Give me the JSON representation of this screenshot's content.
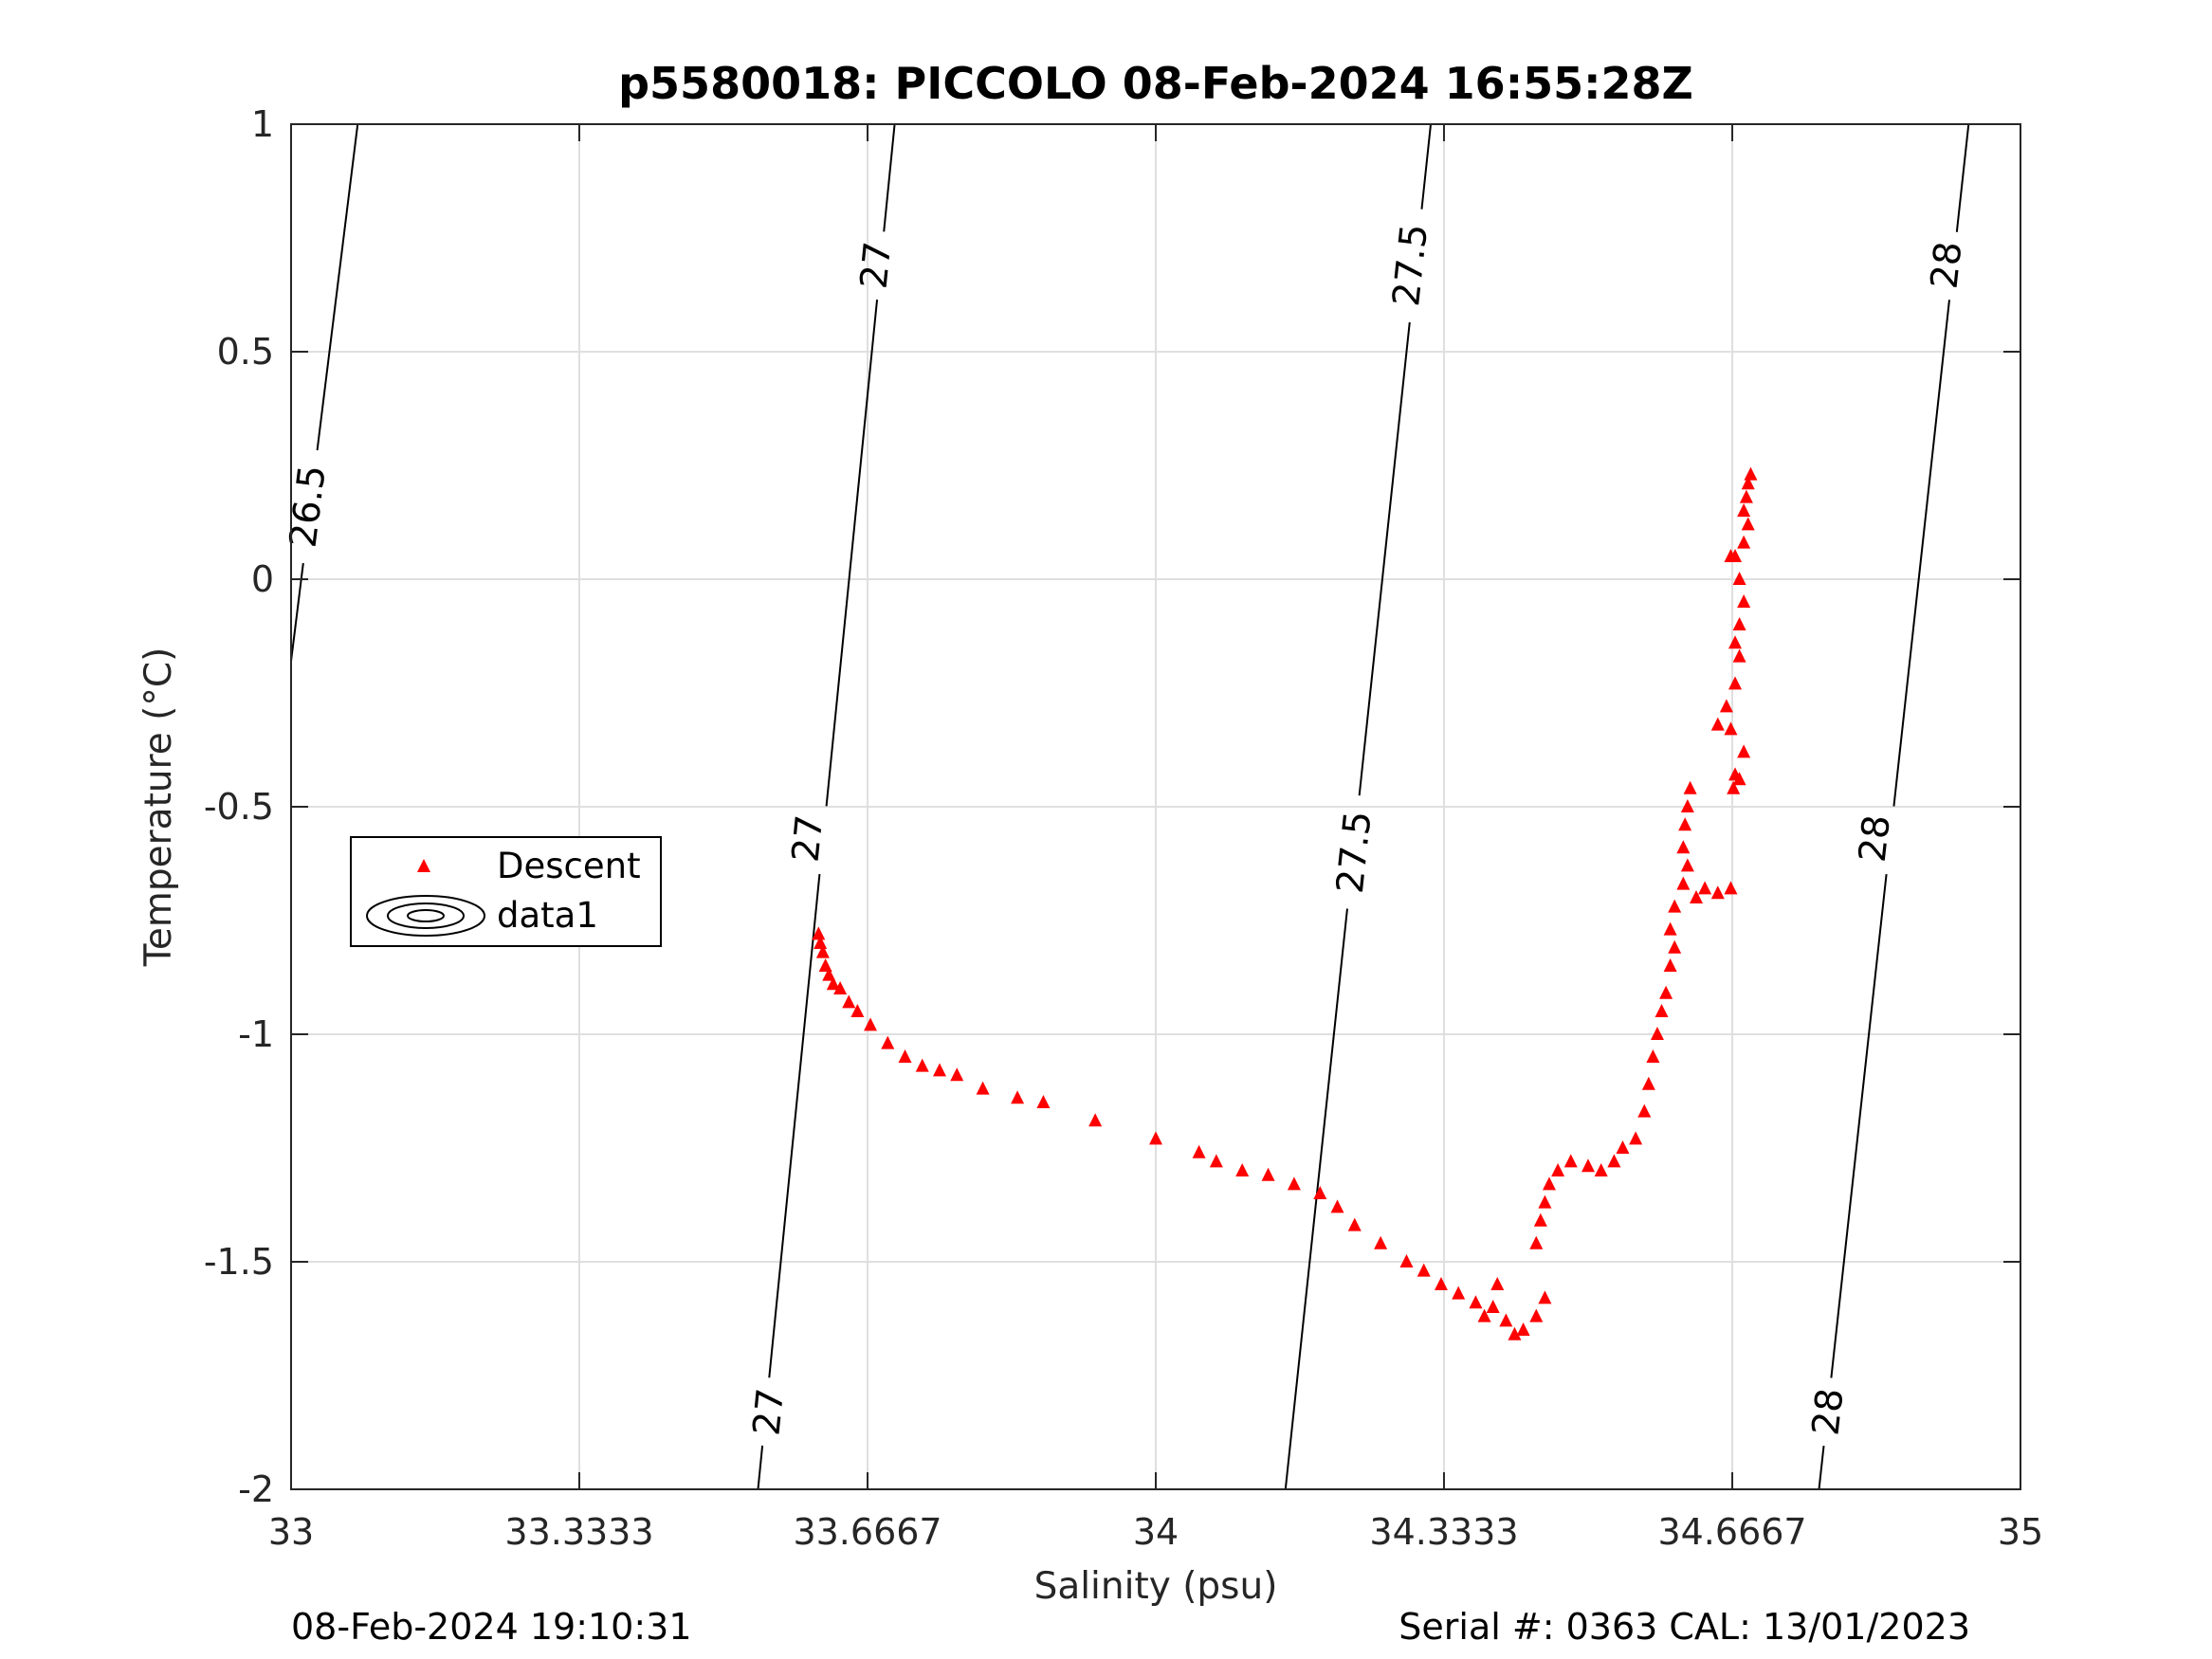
{
  "chart_data": {
    "type": "scatter",
    "title": "p5580018: PICCOLO 08-Feb-2024 16:55:28Z",
    "xlabel": "Salinity (psu)",
    "ylabel": "Temperature (°C)",
    "xlim": [
      33,
      35
    ],
    "ylim": [
      -2,
      1
    ],
    "xticks": [
      33,
      33.3333,
      33.6667,
      34,
      34.3333,
      34.6667,
      35
    ],
    "xtick_labels": [
      "33",
      "33.3333",
      "33.6667",
      "34",
      "34.3333",
      "34.6667",
      "35"
    ],
    "yticks": [
      -2,
      -1.5,
      -1,
      -0.5,
      0,
      0.5,
      1
    ],
    "ytick_labels": [
      "-2",
      "-1.5",
      "-1",
      "-0.5",
      "0",
      "0.5",
      "1"
    ],
    "grid": true,
    "legend": {
      "placement": "middle-left",
      "entries": [
        {
          "label": "Descent",
          "marker": "triangle",
          "color": "#ff0000"
        },
        {
          "label": "data1",
          "marker": "contour",
          "color": "#000000"
        }
      ]
    },
    "contours": [
      {
        "level": "26.5",
        "points": [
          [
            33.0,
            -0.18
          ],
          [
            33.077,
            1.0
          ]
        ],
        "labels": [
          {
            "x": 33.02,
            "y": 0.16,
            "text": "26.5"
          }
        ]
      },
      {
        "level": "27",
        "points": [
          [
            33.54,
            -2.0
          ],
          [
            33.698,
            1.0
          ]
        ],
        "labels": [
          {
            "x": 33.553,
            "y": -1.83,
            "text": "27"
          },
          {
            "x": 33.598,
            "y": -0.57,
            "text": "27"
          },
          {
            "x": 33.677,
            "y": 0.69,
            "text": "27"
          }
        ]
      },
      {
        "level": "27.5",
        "points": [
          [
            34.15,
            -2.0
          ],
          [
            34.318,
            1.0
          ]
        ],
        "labels": [
          {
            "x": 34.23,
            "y": -0.6,
            "text": "27.5"
          },
          {
            "x": 34.295,
            "y": 0.69,
            "text": "27.5"
          }
        ]
      },
      {
        "level": "28",
        "points": [
          [
            34.767,
            -2.0
          ],
          [
            34.94,
            1.0
          ]
        ],
        "labels": [
          {
            "x": 34.778,
            "y": -1.83,
            "text": "28"
          },
          {
            "x": 34.832,
            "y": -0.57,
            "text": "28"
          },
          {
            "x": 34.915,
            "y": 0.69,
            "text": "28"
          }
        ]
      }
    ],
    "series": [
      {
        "name": "Descent",
        "marker": "triangle",
        "color": "#ff0000",
        "points": [
          [
            33.61,
            -0.78
          ],
          [
            33.612,
            -0.8
          ],
          [
            33.615,
            -0.82
          ],
          [
            33.618,
            -0.85
          ],
          [
            33.622,
            -0.87
          ],
          [
            33.627,
            -0.89
          ],
          [
            33.635,
            -0.9
          ],
          [
            33.645,
            -0.93
          ],
          [
            33.655,
            -0.95
          ],
          [
            33.67,
            -0.98
          ],
          [
            33.69,
            -1.02
          ],
          [
            33.71,
            -1.05
          ],
          [
            33.73,
            -1.07
          ],
          [
            33.75,
            -1.08
          ],
          [
            33.77,
            -1.09
          ],
          [
            33.8,
            -1.12
          ],
          [
            33.84,
            -1.14
          ],
          [
            33.87,
            -1.15
          ],
          [
            33.93,
            -1.19
          ],
          [
            34.0,
            -1.23
          ],
          [
            34.05,
            -1.26
          ],
          [
            34.07,
            -1.28
          ],
          [
            34.1,
            -1.3
          ],
          [
            34.13,
            -1.31
          ],
          [
            34.16,
            -1.33
          ],
          [
            34.19,
            -1.35
          ],
          [
            34.21,
            -1.38
          ],
          [
            34.23,
            -1.42
          ],
          [
            34.26,
            -1.46
          ],
          [
            34.29,
            -1.5
          ],
          [
            34.31,
            -1.52
          ],
          [
            34.33,
            -1.55
          ],
          [
            34.35,
            -1.57
          ],
          [
            34.37,
            -1.59
          ],
          [
            34.38,
            -1.62
          ],
          [
            34.39,
            -1.6
          ],
          [
            34.395,
            -1.55
          ],
          [
            34.405,
            -1.63
          ],
          [
            34.415,
            -1.66
          ],
          [
            34.425,
            -1.65
          ],
          [
            34.44,
            -1.62
          ],
          [
            34.45,
            -1.58
          ],
          [
            34.44,
            -1.46
          ],
          [
            34.445,
            -1.41
          ],
          [
            34.45,
            -1.37
          ],
          [
            34.455,
            -1.33
          ],
          [
            34.465,
            -1.3
          ],
          [
            34.48,
            -1.28
          ],
          [
            34.5,
            -1.29
          ],
          [
            34.515,
            -1.3
          ],
          [
            34.53,
            -1.28
          ],
          [
            34.54,
            -1.25
          ],
          [
            34.555,
            -1.23
          ],
          [
            34.565,
            -1.17
          ],
          [
            34.57,
            -1.11
          ],
          [
            34.575,
            -1.05
          ],
          [
            34.58,
            -1.0
          ],
          [
            34.585,
            -0.95
          ],
          [
            34.59,
            -0.91
          ],
          [
            34.595,
            -0.85
          ],
          [
            34.6,
            -0.81
          ],
          [
            34.595,
            -0.77
          ],
          [
            34.6,
            -0.72
          ],
          [
            34.61,
            -0.67
          ],
          [
            34.615,
            -0.63
          ],
          [
            34.61,
            -0.59
          ],
          [
            34.612,
            -0.54
          ],
          [
            34.615,
            -0.5
          ],
          [
            34.618,
            -0.46
          ],
          [
            34.625,
            -0.7
          ],
          [
            34.635,
            -0.68
          ],
          [
            34.65,
            -0.69
          ],
          [
            34.665,
            -0.68
          ],
          [
            34.668,
            -0.46
          ],
          [
            34.67,
            -0.43
          ],
          [
            34.675,
            -0.44
          ],
          [
            34.68,
            -0.38
          ],
          [
            34.65,
            -0.32
          ],
          [
            34.66,
            -0.28
          ],
          [
            34.67,
            -0.23
          ],
          [
            34.675,
            -0.17
          ],
          [
            34.67,
            -0.14
          ],
          [
            34.675,
            -0.1
          ],
          [
            34.68,
            -0.05
          ],
          [
            34.675,
            0.0
          ],
          [
            34.67,
            0.05
          ],
          [
            34.68,
            0.08
          ],
          [
            34.685,
            0.12
          ],
          [
            34.68,
            0.15
          ],
          [
            34.683,
            0.18
          ],
          [
            34.685,
            0.21
          ],
          [
            34.688,
            0.23
          ],
          [
            34.665,
            0.05
          ],
          [
            34.665,
            -0.33
          ]
        ]
      }
    ]
  },
  "footer": {
    "left": "08-Feb-2024 19:10:31",
    "right": "Serial #: 0363  CAL: 13/01/2023"
  }
}
